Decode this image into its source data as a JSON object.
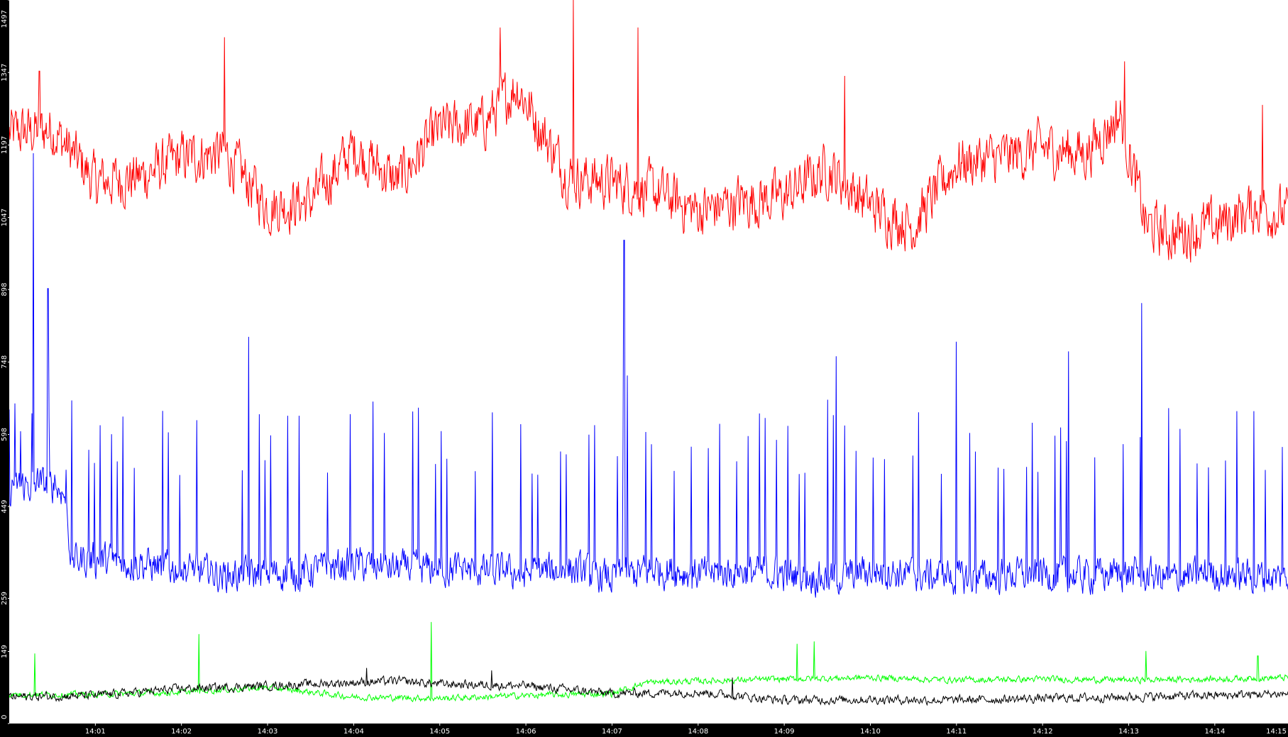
{
  "chart_data": {
    "type": "line",
    "title": "",
    "xlabel": "",
    "ylabel": "",
    "ylim": [
      0,
      1497
    ],
    "xlim_minutes": [
      0.0,
      14.85
    ],
    "y_ticks": [
      "0",
      "149",
      "259",
      "449",
      "598",
      "748",
      "898",
      "1047",
      "1197",
      "1347",
      "1497"
    ],
    "x_ticks": [
      "14:01",
      "14:02",
      "14:03",
      "14:04",
      "14:05",
      "14:06",
      "14:07",
      "14:08",
      "14:09",
      "14:10",
      "14:11",
      "14:12",
      "14:13",
      "14:14",
      "14:15"
    ],
    "grid": false,
    "legend": "none",
    "background": "#ffffff",
    "axis_color": "#000000",
    "series": [
      {
        "color": "#ff0000",
        "x": [
          0.0,
          0.5,
          1.0,
          1.5,
          2.0,
          2.5,
          3.0,
          3.5,
          4.0,
          4.5,
          5.0,
          5.5,
          5.9,
          6.2,
          6.5,
          7.0,
          7.5,
          8.0,
          8.5,
          9.0,
          9.5,
          10.0,
          10.5,
          11.0,
          11.5,
          12.0,
          12.5,
          12.9,
          13.2,
          13.5,
          14.0,
          14.5,
          14.85
        ],
        "values": [
          1220,
          1230,
          1120,
          1130,
          1170,
          1180,
          1070,
          1080,
          1190,
          1120,
          1230,
          1240,
          1320,
          1220,
          1130,
          1120,
          1100,
          1060,
          1080,
          1090,
          1150,
          1070,
          1030,
          1160,
          1170,
          1190,
          1180,
          1260,
          1030,
          1010,
          1030,
          1070,
          1050
        ],
        "amplitude": 85,
        "spike_values": [
          [
            0.35,
            1350
          ],
          [
            2.5,
            1420
          ],
          [
            5.7,
            1440
          ],
          [
            6.55,
            1497
          ],
          [
            7.3,
            1440
          ],
          [
            9.7,
            1340
          ],
          [
            12.95,
            1370
          ],
          [
            14.55,
            1280
          ]
        ]
      },
      {
        "color": "#0000ff",
        "x": [
          0.0,
          0.5,
          0.65,
          0.72,
          1.0,
          1.5,
          2.0,
          2.5,
          3.0,
          3.5,
          4.0,
          4.5,
          5.0,
          5.5,
          6.0,
          6.5,
          7.0,
          7.5,
          8.0,
          8.5,
          9.0,
          9.5,
          10.0,
          10.5,
          11.0,
          11.5,
          12.0,
          12.5,
          13.0,
          13.5,
          14.0,
          14.5,
          14.85
        ],
        "values": [
          490,
          495,
          470,
          340,
          340,
          330,
          320,
          305,
          310,
          315,
          330,
          320,
          320,
          315,
          310,
          320,
          300,
          320,
          310,
          315,
          310,
          300,
          315,
          310,
          300,
          305,
          310,
          305,
          310,
          300,
          310,
          305,
          300
        ],
        "amplitude": 55,
        "spike_every_minutes": 0.066,
        "spike_base": 560,
        "spike_values": [
          [
            0.28,
            1180
          ],
          [
            0.45,
            900
          ],
          [
            2.78,
            800
          ],
          [
            7.14,
            1000
          ],
          [
            7.18,
            720
          ],
          [
            13.15,
            870
          ],
          [
            11.0,
            790
          ],
          [
            12.3,
            770
          ],
          [
            9.6,
            760
          ]
        ]
      },
      {
        "color": "#00ff00",
        "x": [
          0.0,
          1.0,
          2.0,
          3.0,
          4.0,
          5.0,
          6.0,
          7.0,
          7.4,
          8.0,
          9.0,
          10.0,
          11.0,
          12.0,
          13.0,
          14.0,
          14.85
        ],
        "values": [
          60,
          60,
          65,
          75,
          55,
          52,
          58,
          62,
          85,
          88,
          92,
          95,
          90,
          92,
          90,
          92,
          95
        ],
        "amplitude": 10,
        "spike_values": [
          [
            0.3,
            145
          ],
          [
            2.2,
            185
          ],
          [
            4.9,
            210
          ],
          [
            9.15,
            165
          ],
          [
            9.35,
            170
          ],
          [
            13.2,
            150
          ],
          [
            14.5,
            140
          ]
        ]
      },
      {
        "color": "#000000",
        "x": [
          0.0,
          1.0,
          2.0,
          3.0,
          4.0,
          4.5,
          5.0,
          6.0,
          7.0,
          8.0,
          9.0,
          10.0,
          11.0,
          12.0,
          13.0,
          14.0,
          14.85
        ],
        "values": [
          55,
          58,
          72,
          78,
          85,
          88,
          82,
          78,
          62,
          65,
          48,
          50,
          48,
          52,
          55,
          58,
          62
        ],
        "amplitude": 14,
        "spike_values": [
          [
            4.15,
            115
          ],
          [
            5.6,
            110
          ],
          [
            8.4,
            95
          ]
        ]
      }
    ]
  }
}
